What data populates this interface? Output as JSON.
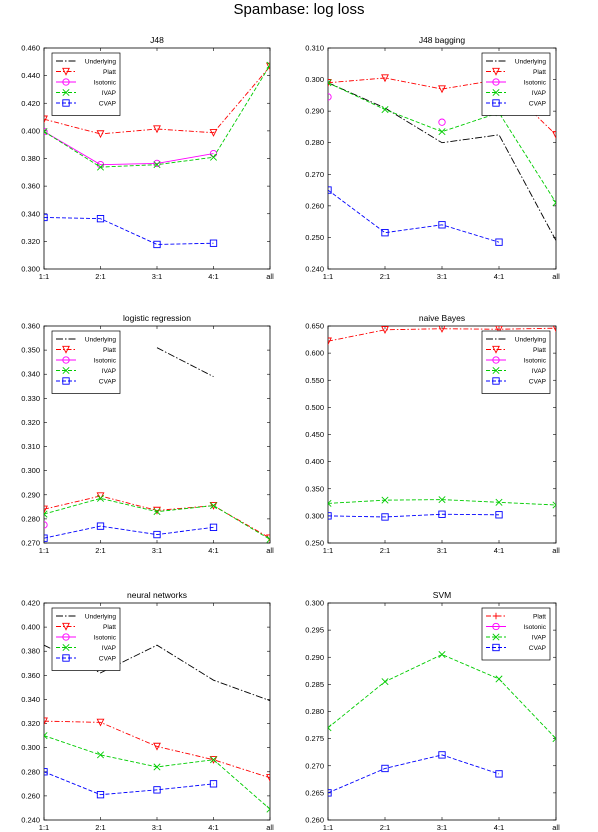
{
  "title": "Spambase: log loss",
  "colors": {
    "Underlying": "#000000",
    "Platt": "#ff0000",
    "Isotonic": "#ff00ff",
    "IVAP": "#00cc00",
    "CVAP": "#0000ff"
  },
  "chart_data": [
    {
      "type": "line",
      "title": "J48",
      "categories": [
        "1:1",
        "2:1",
        "3:1",
        "4:1",
        "all"
      ],
      "ylim": [
        0.28,
        0.46
      ],
      "yticks": [
        "0.300",
        "0.320",
        "0.340",
        "0.360",
        "0.380",
        "0.400",
        "0.420",
        "0.440",
        "0.460"
      ],
      "legend": "top-left",
      "series": [
        {
          "name": "Underlying",
          "values": [
            null,
            null,
            null,
            null,
            0.442
          ]
        },
        {
          "name": "Platt",
          "values": [
            0.402,
            0.39,
            0.394,
            0.391,
            0.445
          ]
        },
        {
          "name": "Isotonic",
          "values": [
            0.392,
            0.365,
            0.366,
            0.374,
            null
          ]
        },
        {
          "name": "IVAP",
          "values": [
            0.392,
            0.363,
            0.365,
            0.371,
            0.446
          ]
        },
        {
          "name": "CVAP",
          "values": [
            0.322,
            0.321,
            0.3,
            0.301,
            null
          ]
        }
      ]
    },
    {
      "type": "line",
      "title": "J48 bagging",
      "categories": [
        "1:1",
        "2:1",
        "3:1",
        "4:1",
        "all"
      ],
      "ylim": [
        0.24,
        0.31
      ],
      "yticks": [
        "0.240",
        "0.250",
        "0.260",
        "0.270",
        "0.280",
        "0.290",
        "0.300",
        "0.310"
      ],
      "legend": "top-right",
      "series": [
        {
          "name": "Underlying",
          "values": [
            0.299,
            0.291,
            0.28,
            0.2825,
            0.249
          ]
        },
        {
          "name": "Platt",
          "values": [
            0.299,
            0.3005,
            0.297,
            0.3,
            0.2825
          ]
        },
        {
          "name": "Isotonic",
          "values": [
            0.2945,
            null,
            0.2865,
            null,
            null
          ]
        },
        {
          "name": "IVAP",
          "values": [
            0.299,
            0.2905,
            0.2835,
            0.2895,
            0.261
          ]
        },
        {
          "name": "CVAP",
          "values": [
            0.265,
            0.2515,
            0.254,
            0.2485,
            null
          ]
        }
      ]
    },
    {
      "type": "line",
      "title": "logistic regression",
      "categories": [
        "1:1",
        "2:1",
        "3:1",
        "4:1",
        "all"
      ],
      "ylim": [
        0.27,
        0.36
      ],
      "yticks": [
        "0.270",
        "0.280",
        "0.290",
        "0.300",
        "0.310",
        "0.320",
        "0.330",
        "0.340",
        "0.350",
        "0.360"
      ],
      "legend": "top-left",
      "series": [
        {
          "name": "Underlying",
          "values": [
            null,
            null,
            0.351,
            0.339,
            null
          ]
        },
        {
          "name": "Platt",
          "values": [
            0.284,
            0.2895,
            0.2835,
            0.2855,
            0.272
          ]
        },
        {
          "name": "Isotonic",
          "values": [
            0.2775,
            null,
            null,
            null,
            null
          ]
        },
        {
          "name": "IVAP",
          "values": [
            0.282,
            0.2885,
            0.283,
            0.2855,
            0.2715
          ]
        },
        {
          "name": "CVAP",
          "values": [
            0.272,
            0.277,
            0.2735,
            0.2765,
            null
          ]
        }
      ]
    },
    {
      "type": "line",
      "title": "naive Bayes",
      "categories": [
        "1:1",
        "2:1",
        "3:1",
        "4:1",
        "all"
      ],
      "ylim": [
        0.25,
        0.65
      ],
      "yticks": [
        "0.250",
        "0.300",
        "0.350",
        "0.400",
        "0.450",
        "0.500",
        "0.550",
        "0.600",
        "0.650"
      ],
      "legend": "top-right",
      "series": [
        {
          "name": "Underlying",
          "values": [
            null,
            null,
            null,
            null,
            null
          ]
        },
        {
          "name": "Platt",
          "values": [
            0.622,
            0.643,
            0.645,
            0.644,
            0.646
          ]
        },
        {
          "name": "Isotonic",
          "values": [
            null,
            null,
            null,
            null,
            null
          ]
        },
        {
          "name": "IVAP",
          "values": [
            0.323,
            0.329,
            0.33,
            0.325,
            0.32
          ]
        },
        {
          "name": "CVAP",
          "values": [
            0.3,
            0.298,
            0.303,
            0.302,
            null
          ]
        }
      ]
    },
    {
      "type": "line",
      "title": "neural networks",
      "categories": [
        "1:1",
        "2:1",
        "3:1",
        "4:1",
        "all"
      ],
      "ylim": [
        0.24,
        0.42
      ],
      "yticks": [
        "0.240",
        "0.260",
        "0.280",
        "0.300",
        "0.320",
        "0.340",
        "0.360",
        "0.380",
        "0.400",
        "0.420"
      ],
      "legend": "top-left",
      "series": [
        {
          "name": "Underlying",
          "values": [
            0.385,
            0.362,
            0.385,
            0.356,
            0.339
          ]
        },
        {
          "name": "Platt",
          "values": [
            0.322,
            0.321,
            0.301,
            0.29,
            0.275
          ]
        },
        {
          "name": "Isotonic",
          "values": [
            null,
            null,
            null,
            null,
            null
          ]
        },
        {
          "name": "IVAP",
          "values": [
            0.31,
            0.294,
            0.284,
            0.29,
            0.249
          ]
        },
        {
          "name": "CVAP",
          "values": [
            0.28,
            0.261,
            0.265,
            0.27,
            null
          ]
        }
      ]
    },
    {
      "type": "line",
      "title": "SVM",
      "categories": [
        "1:1",
        "2:1",
        "3:1",
        "4:1",
        "all"
      ],
      "ylim": [
        0.26,
        0.3
      ],
      "yticks": [
        "0.260",
        "0.265",
        "0.270",
        "0.275",
        "0.280",
        "0.285",
        "0.290",
        "0.295",
        "0.300"
      ],
      "legend": "top-right",
      "series": [
        {
          "name": "Platt",
          "values": [
            null,
            null,
            null,
            null,
            null
          ]
        },
        {
          "name": "Isotonic",
          "values": [
            null,
            null,
            null,
            null,
            null
          ]
        },
        {
          "name": "IVAP",
          "values": [
            0.277,
            0.2855,
            0.2905,
            0.286,
            0.275
          ]
        },
        {
          "name": "CVAP",
          "values": [
            0.265,
            0.2695,
            0.272,
            0.2685,
            null
          ]
        }
      ]
    }
  ]
}
